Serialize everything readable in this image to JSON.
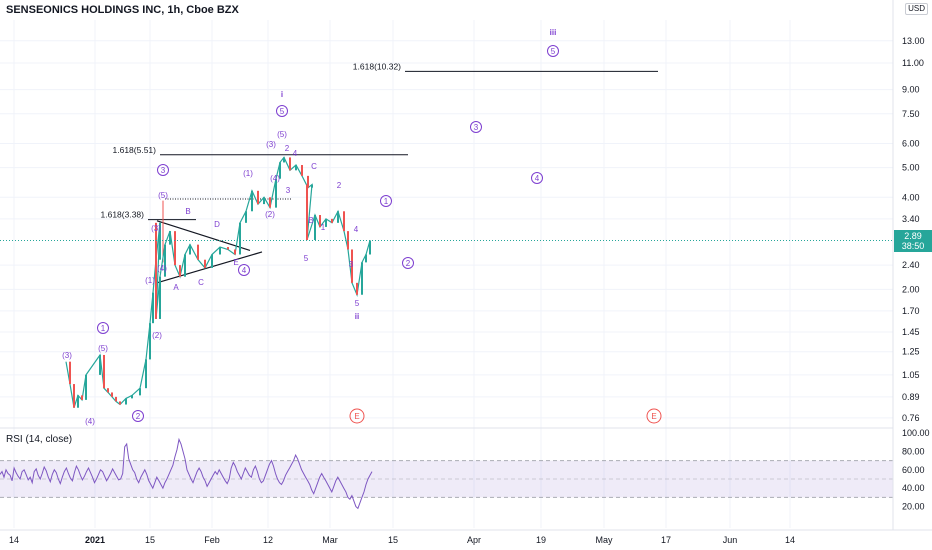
{
  "chart_data": {
    "type": "line",
    "title": "SENSEONICS HOLDINGS INC, 1h, Cboe BZX",
    "currency": "USD",
    "scale": "log",
    "price_axis_ticks": [
      "13.00",
      "11.00",
      "9.00",
      "7.50",
      "6.00",
      "5.00",
      "4.00",
      "3.40",
      "2.89",
      "2.40",
      "2.00",
      "1.70",
      "1.45",
      "1.25",
      "1.05",
      "0.89",
      "0.76"
    ],
    "time_axis_ticks": [
      "14",
      "2021",
      "15",
      "Feb",
      "12",
      "Mar",
      "15",
      "Apr",
      "19",
      "May",
      "17",
      "Jun",
      "14"
    ],
    "last_price": "2.89",
    "countdown": "38:50",
    "price_series": [
      {
        "t": 0,
        "p": 1.16
      },
      {
        "t": 1,
        "p": 0.98
      },
      {
        "t": 2,
        "p": 0.82
      },
      {
        "t": 3,
        "p": 0.9
      },
      {
        "t": 4,
        "p": 0.87
      },
      {
        "t": 5,
        "p": 1.05
      },
      {
        "t": 6,
        "p": 1.22
      },
      {
        "t": 7,
        "p": 0.95
      },
      {
        "t": 8,
        "p": 0.92
      },
      {
        "t": 9,
        "p": 0.89
      },
      {
        "t": 10,
        "p": 0.86
      },
      {
        "t": 11,
        "p": 0.84
      },
      {
        "t": 12,
        "p": 0.88
      },
      {
        "t": 13,
        "p": 0.9
      },
      {
        "t": 14,
        "p": 0.95
      },
      {
        "t": 15,
        "p": 1.18
      },
      {
        "t": 16,
        "p": 1.55
      },
      {
        "t": 17,
        "p": 1.95
      },
      {
        "t": 18,
        "p": 2.5
      },
      {
        "t": 19,
        "p": 3.3
      },
      {
        "t": 20,
        "p": 1.6
      },
      {
        "t": 21,
        "p": 2.2
      },
      {
        "t": 22,
        "p": 2.8
      },
      {
        "t": 23,
        "p": 3.1
      },
      {
        "t": 24,
        "p": 2.4
      },
      {
        "t": 25,
        "p": 2.2
      },
      {
        "t": 26,
        "p": 2.6
      },
      {
        "t": 27,
        "p": 2.8
      },
      {
        "t": 28,
        "p": 2.5
      },
      {
        "t": 29,
        "p": 2.35
      },
      {
        "t": 30,
        "p": 2.6
      },
      {
        "t": 31,
        "p": 2.75
      },
      {
        "t": 32,
        "p": 2.7
      },
      {
        "t": 33,
        "p": 2.6
      },
      {
        "t": 34,
        "p": 3.3
      },
      {
        "t": 35,
        "p": 3.6
      },
      {
        "t": 36,
        "p": 4.2
      },
      {
        "t": 37,
        "p": 3.8
      },
      {
        "t": 38,
        "p": 4.0
      },
      {
        "t": 39,
        "p": 3.7
      },
      {
        "t": 40,
        "p": 4.6
      },
      {
        "t": 41,
        "p": 5.2
      },
      {
        "t": 42,
        "p": 5.4
      },
      {
        "t": 43,
        "p": 4.9
      },
      {
        "t": 44,
        "p": 5.1
      },
      {
        "t": 45,
        "p": 4.7
      },
      {
        "t": 46,
        "p": 4.3
      },
      {
        "t": 47,
        "p": 4.4
      },
      {
        "t": 48,
        "p": 2.9
      },
      {
        "t": 49,
        "p": 3.5
      },
      {
        "t": 50,
        "p": 3.2
      },
      {
        "t": 51,
        "p": 3.4
      },
      {
        "t": 52,
        "p": 3.3
      },
      {
        "t": 53,
        "p": 3.6
      },
      {
        "t": 54,
        "p": 3.1
      },
      {
        "t": 55,
        "p": 2.7
      },
      {
        "t": 56,
        "p": 2.1
      },
      {
        "t": 57,
        "p": 1.92
      },
      {
        "t": 58,
        "p": 2.45
      },
      {
        "t": 59,
        "p": 2.6
      },
      {
        "t": 60,
        "p": 2.89
      }
    ],
    "fib_levels": [
      {
        "label": "1.618(10.32)",
        "price": 10.32
      },
      {
        "label": "1.618(5.51)",
        "price": 5.51
      },
      {
        "label": "1.618(3.38)",
        "price": 3.38
      }
    ],
    "wave_labels": [
      {
        "text": "iii",
        "t": 80,
        "p": 14.5
      },
      {
        "text": "5",
        "t": 80,
        "p": 11.6,
        "circled": true
      },
      {
        "text": "i",
        "t": 41,
        "p": 8.6
      },
      {
        "text": "5",
        "t": 41,
        "p": 7.2,
        "circled": true
      },
      {
        "text": "(5)",
        "t": 41,
        "p": 6.1
      },
      {
        "text": "(3)",
        "t": 39.5,
        "p": 5.6
      },
      {
        "text": "2",
        "t": 42,
        "p": 5.45
      },
      {
        "text": "4",
        "t": 43.5,
        "p": 5.25
      },
      {
        "text": "C",
        "t": 46,
        "p": 4.8
      },
      {
        "text": "2",
        "t": 50,
        "p": 4.35
      },
      {
        "text": "(1)",
        "t": 36,
        "p": 4.6
      },
      {
        "text": "(4)",
        "t": 40,
        "p": 4.4
      },
      {
        "text": "3",
        "t": 42,
        "p": 4.2
      },
      {
        "text": "(2)",
        "t": 39,
        "p": 3.45
      },
      {
        "text": "B",
        "t": 46,
        "p": 3.25
      },
      {
        "text": "1",
        "t": 48,
        "p": 3.1
      },
      {
        "text": "4",
        "t": 53,
        "p": 3.05
      },
      {
        "text": "3",
        "t": 52,
        "p": 2.45
      },
      {
        "text": "5",
        "t": 45,
        "p": 2.5
      },
      {
        "text": "5",
        "t": 53,
        "p": 1.78
      },
      {
        "text": "ii",
        "t": 53,
        "p": 1.6
      },
      {
        "text": "3",
        "t": 23,
        "p": 4.8,
        "circled": true
      },
      {
        "text": "(5)",
        "t": 23.5,
        "p": 4.1
      },
      {
        "text": "B",
        "t": 27,
        "p": 3.5
      },
      {
        "text": "D",
        "t": 31.5,
        "p": 3.2
      },
      {
        "text": "(3)",
        "t": 22.5,
        "p": 3.0
      },
      {
        "text": "(4)",
        "t": 23.5,
        "p": 2.5
      },
      {
        "text": "E",
        "t": 34.5,
        "p": 2.42
      },
      {
        "text": "A",
        "t": 25,
        "p": 2.05
      },
      {
        "text": "C",
        "t": 29,
        "p": 2.1
      },
      {
        "text": "(1)",
        "t": 21,
        "p": 2.05
      },
      {
        "text": "4",
        "t": 36,
        "p": 2.3,
        "circled": true
      },
      {
        "text": "(2)",
        "t": 23,
        "p": 1.45
      },
      {
        "text": "1",
        "t": 15,
        "p": 1.5,
        "circled": true
      },
      {
        "text": "(5)",
        "t": 15,
        "p": 1.3
      },
      {
        "text": "(3)",
        "t": 9,
        "p": 1.22
      },
      {
        "text": "(4)",
        "t": 13,
        "p": 0.77
      },
      {
        "text": "2",
        "t": 20,
        "p": 0.79,
        "circled": true
      },
      {
        "text": "1",
        "t": 57,
        "p": 4.0,
        "circled": true
      },
      {
        "text": "2",
        "t": 60,
        "p": 2.45,
        "circled": true
      },
      {
        "text": "3",
        "t": 70,
        "p": 6.5,
        "circled": true
      },
      {
        "text": "4",
        "t": 79,
        "p": 4.6,
        "circled": true
      },
      {
        "text": "E",
        "t": 53,
        "p": 0.79,
        "circled": true,
        "red": true
      },
      {
        "text": "E",
        "t": 97,
        "p": 0.79,
        "circled": true,
        "red": true
      }
    ],
    "rsi": {
      "label": "RSI (14, close)",
      "ticks": [
        "100.00",
        "80.00",
        "60.00",
        "40.00",
        "20.00"
      ],
      "upper_band": 70,
      "lower_band": 30,
      "values": [
        55,
        58,
        52,
        60,
        56,
        54,
        48,
        62,
        57,
        53,
        50,
        58,
        60,
        55,
        49,
        52,
        46,
        58,
        61,
        54,
        50,
        56,
        63,
        59,
        52,
        47,
        55,
        60,
        57,
        50,
        45,
        52,
        58,
        62,
        56,
        51,
        48,
        57,
        64,
        60,
        54,
        49,
        53,
        58,
        62,
        57,
        52,
        46,
        50,
        55,
        60,
        58,
        53,
        48,
        52,
        56,
        61,
        57,
        53,
        49,
        50,
        56,
        85,
        88,
        72,
        66,
        60,
        57,
        50,
        46,
        52,
        56,
        60,
        55,
        48,
        44,
        40,
        46,
        52,
        48,
        44,
        40,
        46,
        50,
        55,
        60,
        65,
        74,
        82,
        93,
        88,
        80,
        72,
        60,
        55,
        50,
        46,
        52,
        58,
        62,
        58,
        52,
        48,
        42,
        46,
        50,
        54,
        58,
        55,
        60,
        56,
        52,
        48,
        45,
        50,
        62,
        68,
        64,
        58,
        54,
        50,
        56,
        62,
        58,
        54,
        52,
        60,
        64,
        58,
        50,
        46,
        48,
        54,
        60,
        66,
        70,
        64,
        56,
        50,
        46,
        44,
        48,
        54,
        58,
        62,
        66,
        70,
        76,
        72,
        66,
        60,
        56,
        52,
        48,
        44,
        38,
        34,
        40,
        46,
        52,
        56,
        52,
        48,
        44,
        40,
        36,
        42,
        48,
        52,
        48,
        44,
        40,
        36,
        30,
        28,
        32,
        26,
        20,
        18,
        24,
        30,
        36,
        44,
        50,
        54,
        58
      ]
    }
  }
}
